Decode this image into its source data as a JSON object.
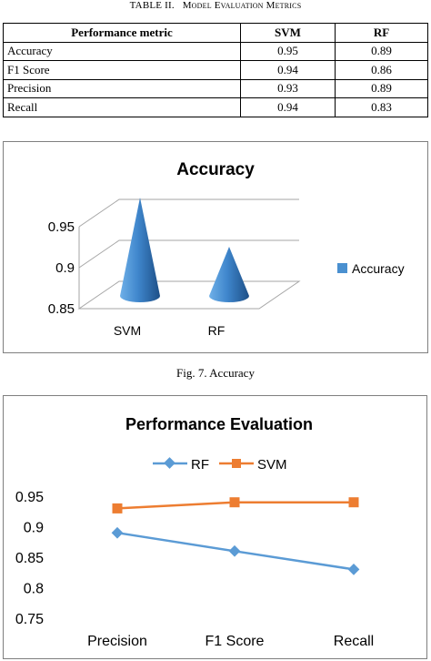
{
  "table": {
    "caption_label": "TABLE II.",
    "caption_title": "Model Evaluation Metrics",
    "headers": [
      "Performance metric",
      "SVM",
      "RF"
    ],
    "rows": [
      [
        "Accuracy",
        "0.95",
        "0.89"
      ],
      [
        "F1 Score",
        "0.94",
        "0.86"
      ],
      [
        "Precision",
        "0.93",
        "0.89"
      ],
      [
        "Recall",
        "0.94",
        "0.83"
      ]
    ]
  },
  "chart_data": [
    {
      "type": "bar",
      "style": "3d-cone",
      "title": "Accuracy",
      "categories": [
        "SVM",
        "RF"
      ],
      "series": [
        {
          "name": "Accuracy",
          "values": [
            0.95,
            0.89
          ]
        }
      ],
      "ylim": [
        0.85,
        0.95
      ],
      "yticks": [
        "0.85",
        "0.9",
        "0.95"
      ],
      "grid": true,
      "legend": "right",
      "color": "#4a90d0"
    },
    {
      "type": "line",
      "title": "Performance Evaluation",
      "categories": [
        "Precision",
        "F1 Score",
        "Recall"
      ],
      "series": [
        {
          "name": "RF",
          "values": [
            0.89,
            0.86,
            0.83
          ],
          "color": "#5b9bd5",
          "marker": "diamond"
        },
        {
          "name": "SVM",
          "values": [
            0.93,
            0.94,
            0.94
          ],
          "color": "#ed7d31",
          "marker": "square"
        }
      ],
      "ylim": [
        0.75,
        0.95
      ],
      "yticks": [
        "0.75",
        "0.8",
        "0.85",
        "0.9",
        "0.95"
      ],
      "grid": false,
      "legend": "top"
    }
  ],
  "captions": {
    "fig7": "Fig. 7.   Accuracy"
  }
}
